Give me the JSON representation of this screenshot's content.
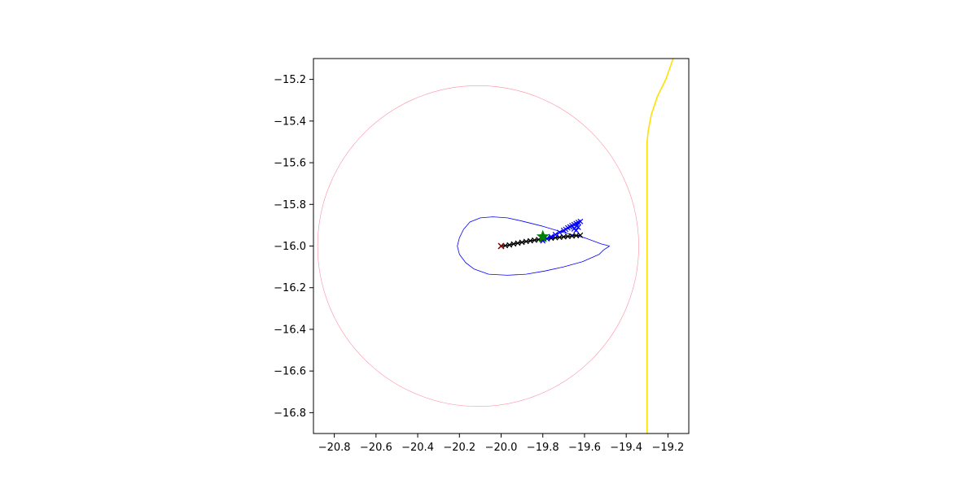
{
  "chart_data": {
    "type": "line",
    "title": "",
    "xlabel": "",
    "ylabel": "",
    "xlim": [
      -20.9,
      -19.1
    ],
    "ylim": [
      -16.9,
      -15.1
    ],
    "grid": false,
    "x_ticks": [
      -20.8,
      -20.6,
      -20.4,
      -20.2,
      -20.0,
      -19.8,
      -19.6,
      -19.4,
      -19.2
    ],
    "x_tick_labels": [
      "−20.8",
      "−20.6",
      "−20.4",
      "−20.2",
      "−20.0",
      "−19.8",
      "−19.6",
      "−19.4",
      "−19.2"
    ],
    "y_ticks": [
      -15.2,
      -15.4,
      -15.6,
      -15.8,
      -16.0,
      -16.2,
      -16.4,
      -16.6,
      -16.8
    ],
    "y_tick_labels": [
      "−15.2",
      "−15.4",
      "−15.6",
      "−15.8",
      "−16.0",
      "−16.2",
      "−16.4",
      "−16.6",
      "−16.8"
    ],
    "series": [
      {
        "kind": "circle",
        "color": "#ff8fa3",
        "center": [
          -20.11,
          -16.0
        ],
        "radius": 0.77
      },
      {
        "kind": "line",
        "color": "#0000ff",
        "points": [
          [
            -19.48,
            -16.0
          ],
          [
            -19.52,
            -15.99
          ],
          [
            -19.6,
            -15.96
          ],
          [
            -19.7,
            -15.935
          ],
          [
            -19.8,
            -15.905
          ],
          [
            -19.9,
            -15.88
          ],
          [
            -19.97,
            -15.865
          ],
          [
            -20.04,
            -15.86
          ],
          [
            -20.1,
            -15.865
          ],
          [
            -20.15,
            -15.885
          ],
          [
            -20.18,
            -15.92
          ],
          [
            -20.2,
            -15.96
          ],
          [
            -20.21,
            -16.0
          ],
          [
            -20.2,
            -16.04
          ],
          [
            -20.17,
            -16.08
          ],
          [
            -20.13,
            -16.11
          ],
          [
            -20.06,
            -16.135
          ],
          [
            -19.97,
            -16.14
          ],
          [
            -19.88,
            -16.135
          ],
          [
            -19.79,
            -16.12
          ],
          [
            -19.7,
            -16.1
          ],
          [
            -19.61,
            -16.075
          ],
          [
            -19.53,
            -16.04
          ],
          [
            -19.51,
            -16.02
          ],
          [
            -19.48,
            -16.0
          ]
        ]
      },
      {
        "kind": "line",
        "color": "#ffe000",
        "points": [
          [
            -19.3,
            -16.9
          ],
          [
            -19.3,
            -16.5
          ],
          [
            -19.3,
            -16.0
          ],
          [
            -19.3,
            -15.6
          ],
          [
            -19.3,
            -15.5
          ],
          [
            -19.295,
            -15.45
          ],
          [
            -19.28,
            -15.37
          ],
          [
            -19.25,
            -15.28
          ],
          [
            -19.21,
            -15.2
          ],
          [
            -19.175,
            -15.1
          ]
        ]
      },
      {
        "kind": "markers",
        "marker": "x",
        "color": "#000000",
        "connect": true,
        "points": [
          [
            -20.0,
            -16.0
          ],
          [
            -19.98,
            -15.998
          ],
          [
            -19.96,
            -15.995
          ],
          [
            -19.94,
            -15.99
          ],
          [
            -19.92,
            -15.986
          ],
          [
            -19.9,
            -15.982
          ],
          [
            -19.88,
            -15.978
          ],
          [
            -19.86,
            -15.975
          ],
          [
            -19.84,
            -15.972
          ],
          [
            -19.82,
            -15.969
          ],
          [
            -19.8,
            -15.966
          ],
          [
            -19.78,
            -15.964
          ],
          [
            -19.76,
            -15.962
          ],
          [
            -19.74,
            -15.96
          ],
          [
            -19.72,
            -15.958
          ],
          [
            -19.7,
            -15.956
          ],
          [
            -19.68,
            -15.954
          ],
          [
            -19.66,
            -15.952
          ],
          [
            -19.64,
            -15.95
          ],
          [
            -19.62,
            -15.948
          ]
        ]
      },
      {
        "kind": "markers",
        "marker": "x",
        "color": "#0000ff",
        "connect": true,
        "points": [
          [
            -19.8,
            -15.975
          ],
          [
            -19.78,
            -15.965
          ],
          [
            -19.76,
            -15.955
          ],
          [
            -19.74,
            -15.945
          ],
          [
            -19.72,
            -15.935
          ],
          [
            -19.7,
            -15.925
          ],
          [
            -19.69,
            -15.92
          ],
          [
            -19.68,
            -15.913
          ],
          [
            -19.67,
            -15.908
          ],
          [
            -19.66,
            -15.902
          ],
          [
            -19.65,
            -15.897
          ],
          [
            -19.64,
            -15.892
          ],
          [
            -19.63,
            -15.887
          ],
          [
            -19.62,
            -15.882
          ],
          [
            -19.65,
            -15.918
          ],
          [
            -19.64,
            -15.925
          ],
          [
            -19.63,
            -15.91
          ]
        ]
      },
      {
        "kind": "point",
        "marker": "star",
        "color": "#008000",
        "points": [
          [
            -19.8,
            -15.955
          ]
        ]
      },
      {
        "kind": "point",
        "marker": "x",
        "color": "#8b0000",
        "points": [
          [
            -20.0,
            -16.0
          ]
        ]
      }
    ]
  }
}
